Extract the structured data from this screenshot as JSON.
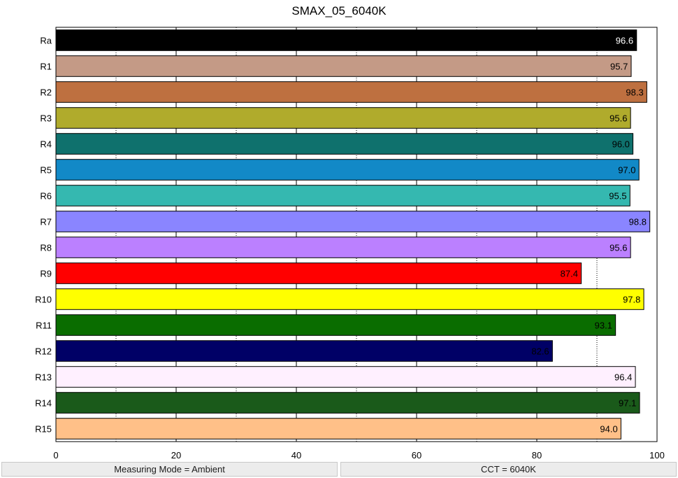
{
  "chart_data": {
    "type": "bar",
    "orientation": "horizontal",
    "title": "SMAX_05_6040K",
    "xlabel": "",
    "ylabel": "",
    "xlim": [
      0,
      100
    ],
    "x_ticks": [
      0,
      20,
      40,
      60,
      80,
      100
    ],
    "grid": "vertical dotted at 10 and solid at 20 intervals",
    "categories": [
      "Ra",
      "R1",
      "R2",
      "R3",
      "R4",
      "R5",
      "R6",
      "R7",
      "R8",
      "R9",
      "R10",
      "R11",
      "R12",
      "R13",
      "R14",
      "R15"
    ],
    "values": [
      96.6,
      95.7,
      98.3,
      95.6,
      96.0,
      97.0,
      95.5,
      98.8,
      95.6,
      87.4,
      97.8,
      93.1,
      82.6,
      96.4,
      97.1,
      94.0
    ],
    "value_labels": [
      "96.6",
      "95.7",
      "98.3",
      "95.6",
      "96.0",
      "97.0",
      "95.5",
      "98.8",
      "95.6",
      "87.4",
      "97.8",
      "93.1",
      "82.6",
      "96.4",
      "97.1",
      "94.0"
    ],
    "colors": [
      "#000000",
      "#c49a86",
      "#be7040",
      "#b0ab2c",
      "#0f716d",
      "#1289c7",
      "#35b8b0",
      "#8a85ff",
      "#bb80ff",
      "#ff0000",
      "#ffff00",
      "#0a6d00",
      "#000066",
      "#fff0ff",
      "#1a5a1a",
      "#ffc088"
    ],
    "label_colors": [
      "#ffffff",
      "#000000",
      "#000000",
      "#000000",
      "#000000",
      "#000000",
      "#000000",
      "#000000",
      "#000000",
      "#000000",
      "#000000",
      "#000000",
      "#000000",
      "#000000",
      "#000000",
      "#000000"
    ]
  },
  "status": {
    "measuring_mode": "Measuring Mode = Ambient",
    "cct": "CCT = 6040K"
  }
}
